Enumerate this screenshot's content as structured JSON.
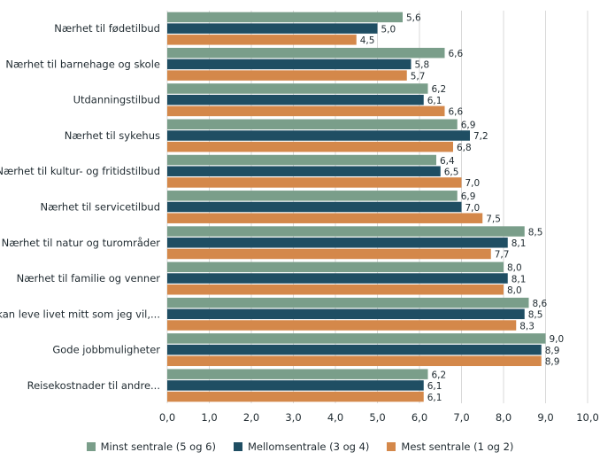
{
  "chart_data": {
    "type": "bar",
    "orientation": "horizontal",
    "categories": [
      "Nærhet til fødetilbud",
      "Nærhet til barnehage og skole",
      "Utdanningstilbud",
      "Nærhet til sykehus",
      "Nærhet til kultur- og fritidstilbud",
      "Nærhet til servicetilbud",
      "Nærhet til natur og turområder",
      "Nærhet til familie og venner",
      "At jeg kan leve livet mitt som jeg vil,...",
      "Gode jobbmuligheter",
      "Reisekostnader til andre..."
    ],
    "series": [
      {
        "name": "Minst sentrale (5 og 6)",
        "color": "#7a9e8a",
        "values": [
          5.6,
          6.6,
          6.2,
          6.9,
          6.4,
          6.9,
          8.5,
          8.0,
          8.6,
          9.0,
          6.2
        ]
      },
      {
        "name": "Mellomsentrale (3 og 4)",
        "color": "#1f4e63",
        "values": [
          5.0,
          5.8,
          6.1,
          7.2,
          6.5,
          7.0,
          8.1,
          8.1,
          8.5,
          8.9,
          6.1
        ]
      },
      {
        "name": "Mest sentrale (1 og 2)",
        "color": "#d4884a",
        "values": [
          4.5,
          5.7,
          6.6,
          6.8,
          7.0,
          7.5,
          7.7,
          8.0,
          8.3,
          8.9,
          6.1
        ]
      }
    ],
    "value_labels": [
      [
        "5,6",
        "6,6",
        "6,2",
        "6,9",
        "6,4",
        "6,9",
        "8,5",
        "8,0",
        "8,6",
        "9,0",
        "6,2"
      ],
      [
        "5,0",
        "5,8",
        "6,1",
        "7,2",
        "6,5",
        "7,0",
        "8,1",
        "8,1",
        "8,5",
        "8,9",
        "6,1"
      ],
      [
        "4,5",
        "5,7",
        "6,6",
        "6,8",
        "7,0",
        "7,5",
        "7,7",
        "8,0",
        "8,3",
        "8,9",
        "6,1"
      ]
    ],
    "xlim": [
      0,
      10
    ],
    "xticks": [
      0,
      1,
      2,
      3,
      4,
      5,
      6,
      7,
      8,
      9,
      10
    ],
    "xtick_labels": [
      "0,0",
      "1,0",
      "2,0",
      "3,0",
      "4,0",
      "5,0",
      "6,0",
      "7,0",
      "8,0",
      "9,0",
      "10,0"
    ],
    "title": "",
    "xlabel": "",
    "ylabel": "",
    "grid": "vertical",
    "legend": "bottom"
  }
}
